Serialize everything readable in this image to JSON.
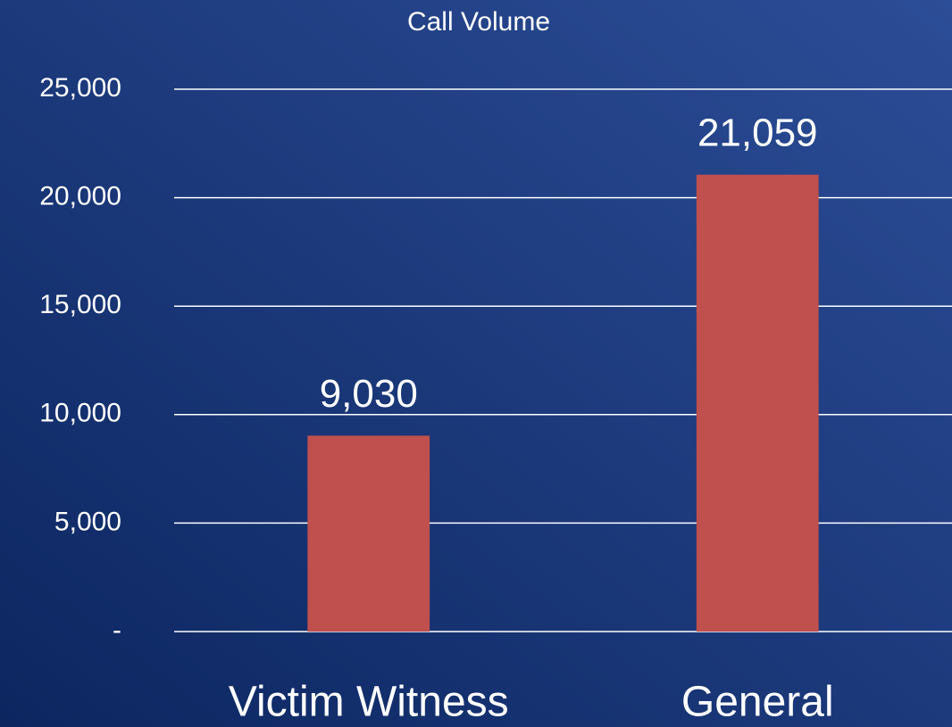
{
  "chart_data": {
    "type": "bar",
    "title": "Call Volume",
    "categories": [
      "Victim Witness",
      "General"
    ],
    "values": [
      9030,
      21059
    ],
    "value_labels": [
      "9,030",
      "21,059"
    ],
    "color": "#c0504d",
    "ylim": [
      0,
      25000
    ],
    "yticks": [
      {
        "value": 0,
        "label": "-"
      },
      {
        "value": 5000,
        "label": "5,000"
      },
      {
        "value": 10000,
        "label": "10,000"
      },
      {
        "value": 15000,
        "label": "15,000"
      },
      {
        "value": 20000,
        "label": "20,000"
      },
      {
        "value": 25000,
        "label": "25,000"
      }
    ],
    "grid": true
  }
}
